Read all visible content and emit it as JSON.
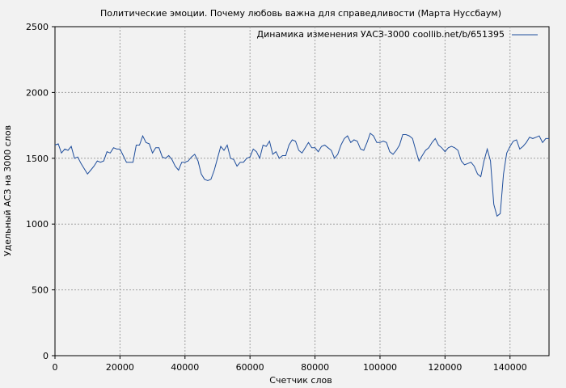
{
  "chart_data": {
    "type": "line",
    "title": "Политические эмоции. Почему любовь важна для справедливости (Марта Нуссбаум)",
    "xlabel": "Счетчик слов",
    "ylabel": "Удельный АСЗ на 3000 слов",
    "xlim": [
      0,
      152000
    ],
    "ylim": [
      0,
      2500
    ],
    "x_ticks": [
      0,
      20000,
      40000,
      60000,
      80000,
      100000,
      120000,
      140000
    ],
    "x_tick_labels": [
      "0",
      "20000",
      "40000",
      "60000",
      "80000",
      "100000",
      "120000",
      "140000"
    ],
    "y_ticks": [
      0,
      500,
      1000,
      1500,
      2000,
      2500
    ],
    "y_tick_labels": [
      "0",
      "500",
      "1000",
      "1500",
      "2000",
      "2500"
    ],
    "grid": true,
    "legend_position": "top-right",
    "series": [
      {
        "name": "Динамика изменения УАСЗ-3000 coollib.net/b/651395",
        "color": "#1f4e9c",
        "x": [
          0,
          1000,
          2000,
          3000,
          4000,
          5000,
          6000,
          7000,
          8000,
          9000,
          10000,
          11000,
          12000,
          13000,
          14000,
          15000,
          16000,
          17000,
          18000,
          19000,
          20000,
          21000,
          22000,
          23000,
          24000,
          25000,
          26000,
          27000,
          28000,
          29000,
          30000,
          31000,
          32000,
          33000,
          34000,
          35000,
          36000,
          37000,
          38000,
          39000,
          40000,
          41000,
          42000,
          43000,
          44000,
          45000,
          46000,
          47000,
          48000,
          49000,
          50000,
          51000,
          52000,
          53000,
          54000,
          55000,
          56000,
          57000,
          58000,
          59000,
          60000,
          61000,
          62000,
          63000,
          64000,
          65000,
          66000,
          67000,
          68000,
          69000,
          70000,
          71000,
          72000,
          73000,
          74000,
          75000,
          76000,
          77000,
          78000,
          79000,
          80000,
          81000,
          82000,
          83000,
          84000,
          85000,
          86000,
          87000,
          88000,
          89000,
          90000,
          91000,
          92000,
          93000,
          94000,
          95000,
          96000,
          97000,
          98000,
          99000,
          100000,
          101000,
          102000,
          103000,
          104000,
          105000,
          106000,
          107000,
          108000,
          109000,
          110000,
          111000,
          112000,
          113000,
          114000,
          115000,
          116000,
          117000,
          118000,
          119000,
          120000,
          121000,
          122000,
          123000,
          124000,
          125000,
          126000,
          127000,
          128000,
          129000,
          130000,
          131000,
          132000,
          133000,
          134000,
          135000,
          136000,
          137000,
          138000,
          139000,
          140000,
          141000,
          142000,
          143000,
          144000,
          145000,
          146000,
          147000,
          148000,
          149000,
          150000,
          151000,
          152000
        ],
        "values": [
          1600,
          1610,
          1540,
          1570,
          1560,
          1590,
          1500,
          1510,
          1460,
          1420,
          1380,
          1410,
          1440,
          1480,
          1470,
          1480,
          1550,
          1540,
          1580,
          1570,
          1570,
          1520,
          1470,
          1470,
          1470,
          1600,
          1600,
          1670,
          1620,
          1610,
          1540,
          1580,
          1580,
          1510,
          1500,
          1520,
          1490,
          1440,
          1410,
          1470,
          1470,
          1480,
          1510,
          1530,
          1480,
          1380,
          1340,
          1330,
          1340,
          1410,
          1500,
          1590,
          1560,
          1600,
          1500,
          1490,
          1440,
          1470,
          1470,
          1500,
          1510,
          1570,
          1550,
          1500,
          1600,
          1590,
          1630,
          1530,
          1550,
          1500,
          1520,
          1520,
          1600,
          1640,
          1630,
          1560,
          1540,
          1580,
          1620,
          1580,
          1580,
          1550,
          1590,
          1600,
          1580,
          1560,
          1500,
          1530,
          1600,
          1650,
          1670,
          1620,
          1640,
          1630,
          1570,
          1560,
          1620,
          1690,
          1670,
          1620,
          1620,
          1630,
          1620,
          1550,
          1530,
          1560,
          1600,
          1680,
          1680,
          1670,
          1650,
          1560,
          1480,
          1520,
          1560,
          1580,
          1620,
          1650,
          1600,
          1580,
          1550,
          1580,
          1590,
          1580,
          1560,
          1480,
          1450,
          1460,
          1470,
          1440,
          1380,
          1360,
          1480,
          1570,
          1480,
          1150,
          1060,
          1080,
          1380,
          1540,
          1590,
          1630,
          1640,
          1570,
          1590,
          1620,
          1660,
          1650,
          1660,
          1670,
          1620,
          1650,
          1650
        ]
      }
    ]
  }
}
